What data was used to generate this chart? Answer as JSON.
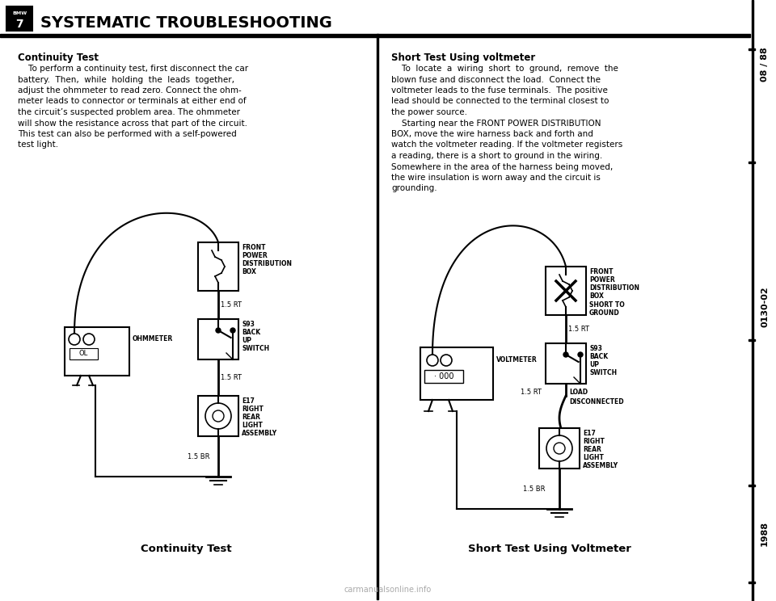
{
  "bg_color": "#ffffff",
  "title": "SYSTEMATIC TROUBLESHOOTING",
  "side_label_top": "08 / 88",
  "side_label_mid": "0130-02",
  "side_label_bot": "1988",
  "left_heading": "Continuity Test",
  "left_body_lines": [
    "    To perform a continuity test, first disconnect the car",
    "battery.  Then,  while  holding  the  leads  together,",
    "adjust the ohmmeter to read zero. Connect the ohm-",
    "meter leads to connector or terminals at either end of",
    "the circuit’s suspected problem area. The ohmmeter",
    "will show the resistance across that part of the circuit.",
    "This test can also be performed with a self-powered",
    "test light."
  ],
  "right_heading": "Short Test Using voltmeter",
  "right_body_lines": [
    "    To  locate  a  wiring  short  to  ground,  remove  the",
    "blown fuse and disconnect the load.  Connect the",
    "voltmeter leads to the fuse terminals.  The positive",
    "lead should be connected to the terminal closest to",
    "the power source.",
    "    Starting near the FRONT POWER DISTRIBUTION",
    "BOX, move the wire harness back and forth and",
    "watch the voltmeter reading. If the voltmeter registers",
    "a reading, there is a short to ground in the wiring.",
    "Somewhere in the area of the harness being moved,",
    "the wire insulation is worn away and the circuit is",
    "grounding."
  ],
  "left_caption": "Continuity Test",
  "right_caption": "Short Test Using Voltmeter",
  "watermark": "carmanualsonline.info"
}
